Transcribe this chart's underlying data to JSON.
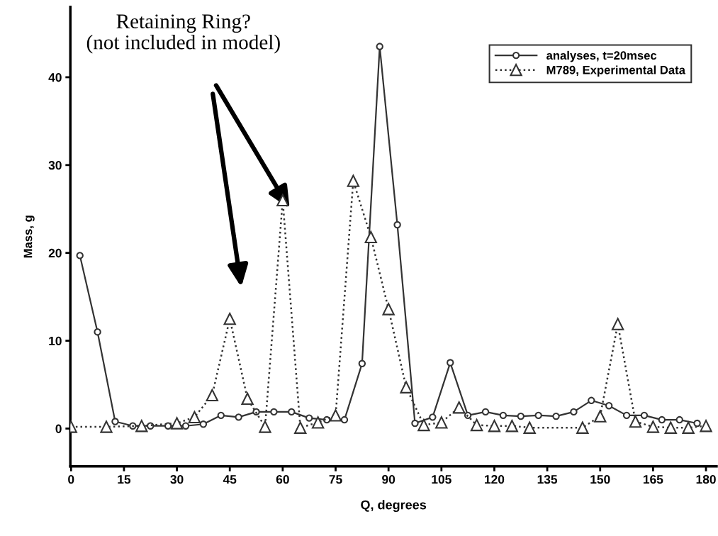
{
  "chart_data": {
    "type": "line",
    "xlabel": "Q, degrees",
    "ylabel": "Mass, g",
    "xlim": [
      -0.2,
      183
    ],
    "ylim": [
      -4.3,
      48
    ],
    "xticks": [
      0,
      15,
      30,
      45,
      60,
      75,
      90,
      105,
      120,
      135,
      150,
      165,
      180
    ],
    "yticks": [
      0,
      10,
      20,
      30,
      40
    ],
    "grid": false,
    "legend": "top right",
    "series": [
      {
        "name": "analyses, t=20msec",
        "color": "#333333",
        "marker": "circle",
        "line_style": "solid",
        "x": [
          2.5,
          7.5,
          12.5,
          17.5,
          22.5,
          27.5,
          32.5,
          37.5,
          42.5,
          47.5,
          52.5,
          57.5,
          62.5,
          67.5,
          72.5,
          77.5,
          82.5,
          87.5,
          92.5,
          97.5,
          102.5,
          107.5,
          112.5,
          117.5,
          122.5,
          127.5,
          132.5,
          137.5,
          142.5,
          147.5,
          152.5,
          157.5,
          162.5,
          167.5,
          172.5,
          177.5
        ],
        "values": [
          19.7,
          11.0,
          0.8,
          0.3,
          0.3,
          0.3,
          0.3,
          0.5,
          1.5,
          1.3,
          1.9,
          1.9,
          1.9,
          1.2,
          1.0,
          1.0,
          7.4,
          43.5,
          23.2,
          0.6,
          1.3,
          7.5,
          1.5,
          1.9,
          1.5,
          1.4,
          1.5,
          1.4,
          1.9,
          3.2,
          2.6,
          1.5,
          1.5,
          1.0,
          1.0,
          0.6
        ]
      },
      {
        "name": "M789, Experimental Data",
        "color": "#333333",
        "marker": "triangle",
        "line_style": "dotted",
        "x": [
          0,
          10,
          20,
          30,
          35,
          40,
          45,
          50,
          55,
          60,
          65,
          70,
          75,
          80,
          85,
          90,
          95,
          100,
          105,
          110,
          115,
          120,
          125,
          130,
          145,
          150,
          155,
          160,
          165,
          170,
          175,
          180
        ],
        "values": [
          0.2,
          0.2,
          0.3,
          0.6,
          1.3,
          3.8,
          12.5,
          3.4,
          0.2,
          26.0,
          0.1,
          0.7,
          1.5,
          28.2,
          21.8,
          13.6,
          4.7,
          0.4,
          0.7,
          2.4,
          0.4,
          0.3,
          0.3,
          0.1,
          0.1,
          1.4,
          11.9,
          0.8,
          0.2,
          0.1,
          0.1,
          0.3
        ]
      }
    ],
    "annotations": [
      "Retaining Ring?\n(not included in model)"
    ]
  }
}
